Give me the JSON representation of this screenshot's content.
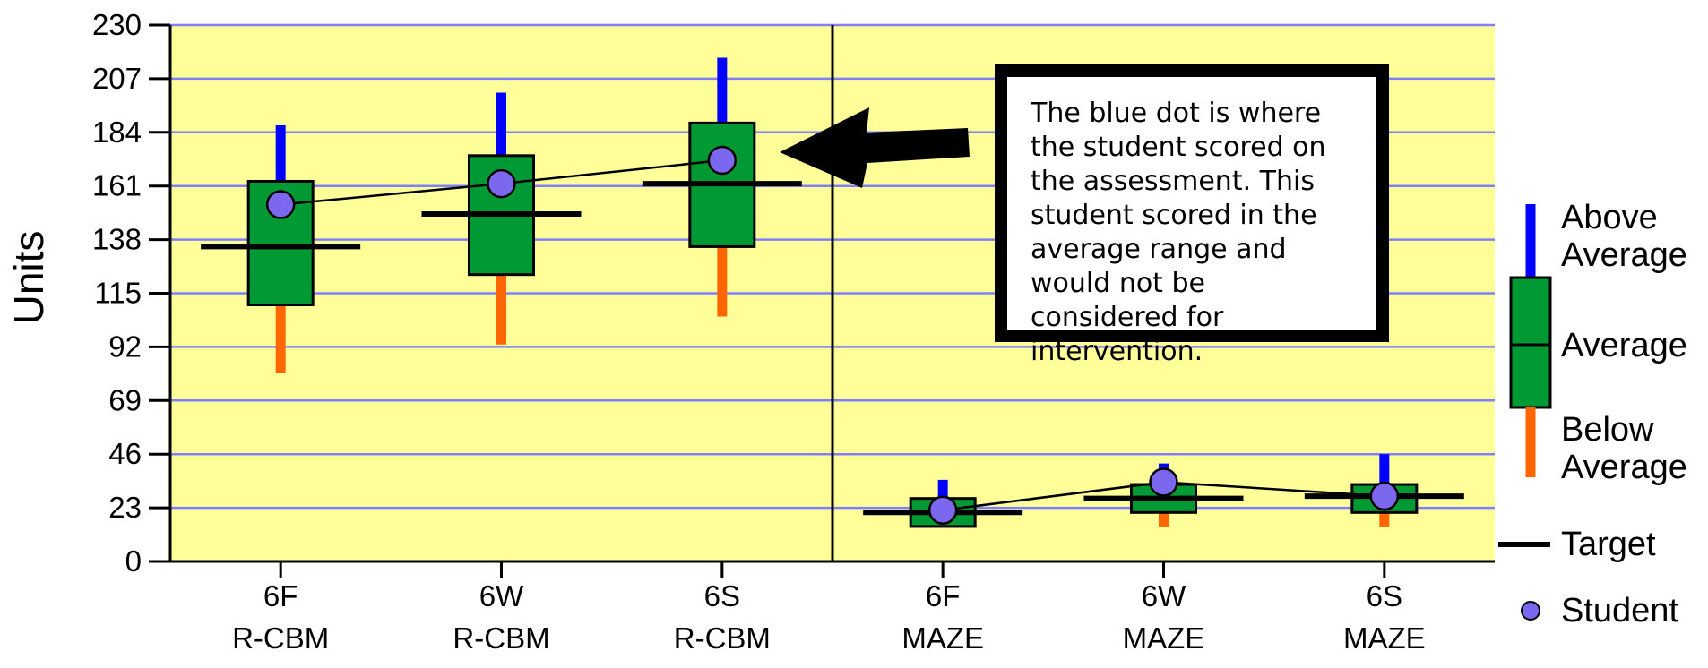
{
  "chart_data": {
    "type": "box",
    "ylabel": "Units",
    "ylim": [
      0,
      230
    ],
    "yticks": [
      0,
      23,
      46,
      69,
      92,
      115,
      138,
      161,
      184,
      207,
      230
    ],
    "grid": true,
    "groups": [
      {
        "name": "R-CBM",
        "items": [
          {
            "label1": "6F",
            "label2": "R-CBM",
            "whisker_low": 81,
            "box_low": 110,
            "box_high": 163,
            "whisker_high": 187,
            "target": 135,
            "student": 153
          },
          {
            "label1": "6W",
            "label2": "R-CBM",
            "whisker_low": 93,
            "box_low": 123,
            "box_high": 174,
            "whisker_high": 201,
            "target": 149,
            "student": 162
          },
          {
            "label1": "6S",
            "label2": "R-CBM",
            "whisker_low": 105,
            "box_low": 135,
            "box_high": 188,
            "whisker_high": 216,
            "target": 162,
            "student": 172
          }
        ]
      },
      {
        "name": "MAZE",
        "items": [
          {
            "label1": "6F",
            "label2": "MAZE",
            "whisker_low": 15,
            "box_low": 15,
            "box_high": 27,
            "whisker_high": 35,
            "target": 21,
            "student": 22
          },
          {
            "label1": "6W",
            "label2": "MAZE",
            "whisker_low": 15,
            "box_low": 21,
            "box_high": 33,
            "whisker_high": 42,
            "target": 27,
            "student": 34
          },
          {
            "label1": "6S",
            "label2": "MAZE",
            "whisker_low": 15,
            "box_low": 21,
            "box_high": 33,
            "whisker_high": 46,
            "target": 28,
            "student": 28
          }
        ]
      }
    ],
    "legend": {
      "position": "right",
      "above": "Above\nAverage",
      "average": "Average",
      "below": "Below\nAverage",
      "target": "Target",
      "student": "Student"
    },
    "annotation": "The blue dot is where the student scored on the assessment.  This student scored in the average range and would not be considered for intervention."
  },
  "colors": {
    "plot_bg": "#FFFF99",
    "grid": "#8080FF",
    "box": "#009933",
    "whisker_above": "#0000FF",
    "whisker_below": "#FF6600",
    "student": "#7B68EE",
    "target": "#000000"
  }
}
